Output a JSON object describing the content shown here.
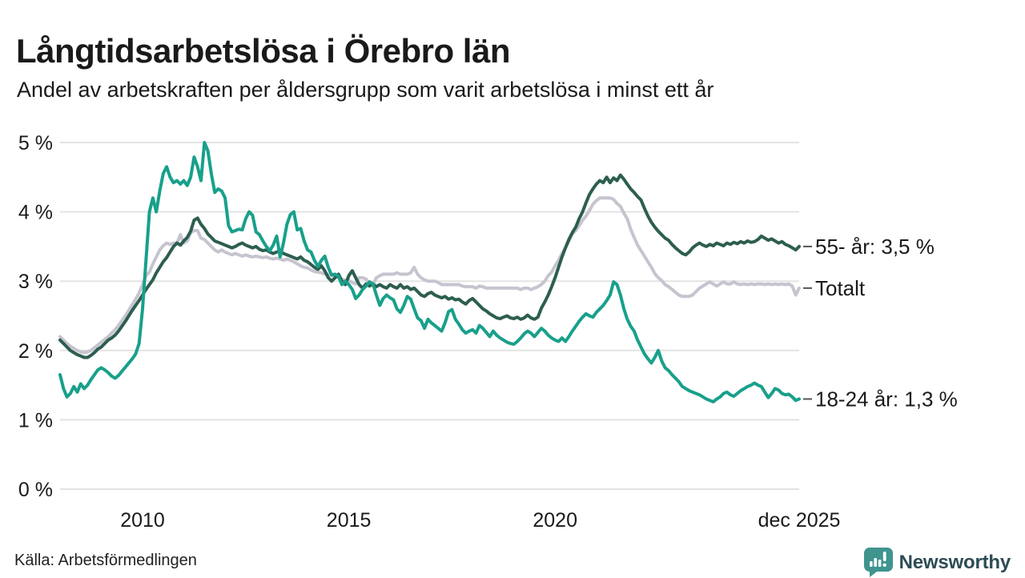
{
  "header": {
    "title": "Långtidsarbetslösa i Örebro län",
    "subtitle": "Andel av arbetskraften per åldersgrupp som varit arbetslösa i minst ett år"
  },
  "footer": {
    "source": "Källa: Arbetsförmedlingen",
    "logo_text": "Newsworthy"
  },
  "colors": {
    "text": "#1a1a1a",
    "gridline": "#e3e3e3",
    "leader_dash": "#555555",
    "logo_icon": "#3f948e",
    "logo_text": "#2d4b55"
  },
  "chart_data": {
    "type": "line",
    "title": "Långtidsarbetslösa i Örebro län",
    "subtitle": "Andel av arbetskraften per åldersgrupp som varit arbetslösa i minst ett år",
    "x_unit": "month",
    "x_start": "2008-01",
    "x_end": "2025-12",
    "ylim": [
      0,
      5
    ],
    "grid": "horizontal",
    "legend_position": "right-end-labels",
    "yticks": [
      {
        "value": 0,
        "label": "0 %"
      },
      {
        "value": 1,
        "label": "1 %"
      },
      {
        "value": 2,
        "label": "2 %"
      },
      {
        "value": 3,
        "label": "3 %"
      },
      {
        "value": 4,
        "label": "4 %"
      },
      {
        "value": 5,
        "label": "5 %"
      }
    ],
    "xticks": [
      {
        "month_index": 24,
        "label": "2010"
      },
      {
        "month_index": 84,
        "label": "2015"
      },
      {
        "month_index": 144,
        "label": "2020"
      },
      {
        "month_index": 215,
        "label": "dec 2025"
      }
    ],
    "series": [
      {
        "key": "totalt",
        "name": "Totalt",
        "end_label": "Totalt",
        "color": "#c6c4cf",
        "values": [
          2.2,
          2.15,
          2.1,
          2.06,
          2.03,
          2.0,
          1.98,
          1.97,
          1.98,
          2.0,
          2.04,
          2.08,
          2.12,
          2.16,
          2.2,
          2.25,
          2.3,
          2.36,
          2.43,
          2.5,
          2.58,
          2.66,
          2.74,
          2.83,
          2.95,
          3.08,
          3.13,
          3.25,
          3.35,
          3.45,
          3.51,
          3.55,
          3.53,
          3.55,
          3.55,
          3.67,
          3.55,
          3.58,
          3.7,
          3.73,
          3.73,
          3.62,
          3.6,
          3.55,
          3.5,
          3.45,
          3.42,
          3.45,
          3.42,
          3.4,
          3.38,
          3.4,
          3.38,
          3.36,
          3.38,
          3.36,
          3.35,
          3.36,
          3.35,
          3.34,
          3.35,
          3.33,
          3.32,
          3.33,
          3.32,
          3.3,
          3.32,
          3.3,
          3.28,
          3.25,
          3.22,
          3.2,
          3.19,
          3.16,
          3.14,
          3.13,
          3.12,
          3.1,
          3.1,
          3.08,
          3.07,
          3.05,
          3.03,
          3.01,
          3.01,
          2.98,
          2.96,
          3.05,
          3.05,
          3.03,
          2.95,
          2.95,
          3.05,
          3.08,
          3.1,
          3.1,
          3.1,
          3.1,
          3.12,
          3.1,
          3.1,
          3.1,
          3.12,
          3.2,
          3.1,
          3.05,
          3.02,
          3.0,
          3.0,
          3.0,
          2.98,
          2.95,
          2.95,
          2.95,
          2.95,
          2.95,
          2.95,
          2.93,
          2.92,
          2.92,
          2.92,
          2.9,
          2.93,
          2.92,
          2.9,
          2.9,
          2.9,
          2.9,
          2.9,
          2.9,
          2.9,
          2.9,
          2.9,
          2.9,
          2.88,
          2.9,
          2.9,
          2.88,
          2.9,
          2.92,
          2.95,
          3.0,
          3.08,
          3.13,
          3.22,
          3.3,
          3.4,
          3.48,
          3.58,
          3.68,
          3.73,
          3.8,
          3.88,
          3.94,
          4.02,
          4.11,
          4.16,
          4.2,
          4.2,
          4.2,
          4.2,
          4.18,
          4.12,
          4.08,
          3.98,
          3.9,
          3.75,
          3.63,
          3.52,
          3.44,
          3.36,
          3.28,
          3.2,
          3.11,
          3.05,
          3.01,
          2.95,
          2.92,
          2.88,
          2.84,
          2.8,
          2.78,
          2.78,
          2.78,
          2.8,
          2.85,
          2.9,
          2.93,
          2.96,
          2.99,
          2.96,
          2.93,
          2.96,
          2.99,
          2.96,
          2.96,
          2.99,
          2.96,
          2.95,
          2.96,
          2.95,
          2.96,
          2.95,
          2.96,
          2.96,
          2.95,
          2.96,
          2.95,
          2.96,
          2.95,
          2.96,
          2.95,
          2.96,
          2.93,
          2.8,
          2.9
        ]
      },
      {
        "key": "55",
        "name": "55- år",
        "end_label": "55- år: 3,5 %",
        "color": "#2d5e50",
        "values": [
          2.15,
          2.1,
          2.05,
          2.0,
          1.97,
          1.94,
          1.92,
          1.9,
          1.9,
          1.93,
          1.97,
          2.02,
          2.05,
          2.1,
          2.15,
          2.18,
          2.22,
          2.28,
          2.35,
          2.42,
          2.5,
          2.58,
          2.65,
          2.72,
          2.8,
          2.88,
          2.95,
          3.02,
          3.12,
          3.2,
          3.28,
          3.34,
          3.42,
          3.5,
          3.55,
          3.52,
          3.58,
          3.63,
          3.72,
          3.88,
          3.91,
          3.82,
          3.76,
          3.68,
          3.63,
          3.58,
          3.56,
          3.54,
          3.52,
          3.5,
          3.48,
          3.5,
          3.53,
          3.55,
          3.52,
          3.5,
          3.48,
          3.5,
          3.46,
          3.44,
          3.45,
          3.42,
          3.4,
          3.42,
          3.44,
          3.4,
          3.38,
          3.36,
          3.34,
          3.32,
          3.35,
          3.3,
          3.28,
          3.24,
          3.2,
          3.17,
          3.22,
          3.15,
          3.05,
          3.0,
          3.05,
          3.1,
          3.0,
          2.95,
          3.08,
          3.15,
          3.05,
          2.95,
          2.9,
          2.96,
          2.93,
          2.96,
          2.92,
          2.95,
          2.92,
          2.9,
          2.95,
          2.92,
          2.9,
          2.95,
          2.9,
          2.92,
          2.88,
          2.9,
          2.85,
          2.8,
          2.78,
          2.82,
          2.84,
          2.8,
          2.78,
          2.76,
          2.78,
          2.74,
          2.76,
          2.73,
          2.74,
          2.7,
          2.67,
          2.72,
          2.75,
          2.7,
          2.65,
          2.6,
          2.57,
          2.53,
          2.5,
          2.47,
          2.46,
          2.48,
          2.5,
          2.47,
          2.46,
          2.48,
          2.45,
          2.47,
          2.51,
          2.47,
          2.45,
          2.48,
          2.61,
          2.7,
          2.8,
          2.92,
          3.05,
          3.2,
          3.35,
          3.48,
          3.6,
          3.7,
          3.78,
          3.9,
          4.0,
          4.13,
          4.25,
          4.33,
          4.4,
          4.45,
          4.42,
          4.5,
          4.42,
          4.49,
          4.45,
          4.53,
          4.47,
          4.4,
          4.33,
          4.28,
          4.22,
          4.17,
          4.05,
          3.94,
          3.85,
          3.78,
          3.72,
          3.67,
          3.62,
          3.59,
          3.53,
          3.48,
          3.44,
          3.4,
          3.38,
          3.42,
          3.48,
          3.52,
          3.55,
          3.52,
          3.5,
          3.53,
          3.51,
          3.55,
          3.53,
          3.51,
          3.55,
          3.53,
          3.56,
          3.54,
          3.57,
          3.55,
          3.58,
          3.56,
          3.57,
          3.6,
          3.65,
          3.62,
          3.59,
          3.61,
          3.58,
          3.55,
          3.57,
          3.53,
          3.51,
          3.48,
          3.45,
          3.5
        ]
      },
      {
        "key": "1824",
        "name": "18-24 år",
        "end_label": "18-24 år: 1,3 %",
        "color": "#18a08b",
        "values": [
          1.65,
          1.45,
          1.33,
          1.38,
          1.48,
          1.4,
          1.52,
          1.45,
          1.5,
          1.58,
          1.65,
          1.72,
          1.75,
          1.72,
          1.68,
          1.63,
          1.6,
          1.64,
          1.7,
          1.76,
          1.82,
          1.88,
          1.95,
          2.1,
          2.6,
          3.3,
          4.0,
          4.2,
          4.0,
          4.3,
          4.55,
          4.65,
          4.5,
          4.42,
          4.45,
          4.4,
          4.45,
          4.38,
          4.5,
          4.79,
          4.65,
          4.45,
          5.0,
          4.88,
          4.55,
          4.28,
          4.33,
          4.3,
          4.2,
          3.8,
          3.71,
          3.73,
          3.75,
          3.74,
          3.9,
          4.0,
          3.95,
          3.71,
          3.67,
          3.58,
          3.5,
          3.44,
          3.52,
          3.65,
          3.35,
          3.55,
          3.82,
          3.96,
          4.0,
          3.74,
          3.76,
          3.58,
          3.45,
          3.42,
          3.3,
          3.21,
          3.3,
          3.36,
          3.2,
          3.09,
          3.1,
          3.07,
          2.95,
          3.0,
          2.95,
          2.88,
          2.75,
          2.8,
          2.88,
          2.93,
          2.99,
          2.96,
          2.8,
          2.65,
          2.75,
          2.8,
          2.76,
          2.73,
          2.6,
          2.55,
          2.65,
          2.78,
          2.74,
          2.6,
          2.47,
          2.43,
          2.32,
          2.45,
          2.4,
          2.36,
          2.32,
          2.28,
          2.4,
          2.56,
          2.59,
          2.45,
          2.38,
          2.3,
          2.25,
          2.28,
          2.3,
          2.25,
          2.36,
          2.32,
          2.26,
          2.2,
          2.28,
          2.22,
          2.18,
          2.15,
          2.12,
          2.1,
          2.09,
          2.13,
          2.18,
          2.24,
          2.28,
          2.25,
          2.2,
          2.26,
          2.32,
          2.28,
          2.22,
          2.18,
          2.15,
          2.13,
          2.18,
          2.13,
          2.2,
          2.28,
          2.35,
          2.42,
          2.48,
          2.53,
          2.5,
          2.48,
          2.55,
          2.6,
          2.65,
          2.72,
          2.8,
          2.99,
          2.95,
          2.8,
          2.6,
          2.45,
          2.35,
          2.28,
          2.15,
          2.05,
          1.95,
          1.88,
          1.82,
          1.9,
          2.0,
          1.85,
          1.75,
          1.71,
          1.65,
          1.6,
          1.55,
          1.48,
          1.45,
          1.42,
          1.4,
          1.38,
          1.36,
          1.33,
          1.3,
          1.28,
          1.26,
          1.3,
          1.33,
          1.38,
          1.4,
          1.36,
          1.34,
          1.38,
          1.42,
          1.45,
          1.48,
          1.5,
          1.53,
          1.5,
          1.48,
          1.4,
          1.32,
          1.38,
          1.45,
          1.43,
          1.38,
          1.36,
          1.37,
          1.33,
          1.28,
          1.3
        ]
      }
    ]
  }
}
